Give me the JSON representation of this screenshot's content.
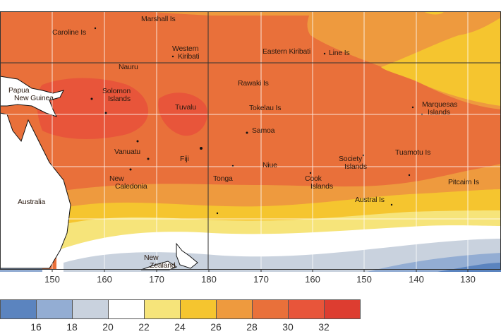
{
  "map": {
    "places": [
      "Marshall Is",
      "Caroline Is",
      "Western\nKiribati",
      "Eastern Kiribati",
      "Line Is",
      "Nauru",
      "Papua\nNew Guinea",
      "Solomon\nIslands",
      "Tuvalu",
      "Rawaki Is",
      "Tokelau Is",
      "Marquesas\nIslands",
      "Samoa",
      "Vanuatu",
      "Fiji",
      "Niue",
      "Society\nIslands",
      "Tuamotu Is",
      "New\nCaledonia",
      "Tonga",
      "Cook\nIslands",
      "Pitcairn Is",
      "Australia",
      "Austral Is",
      "New\nZealand"
    ],
    "longitude_ticks": [
      "150",
      "160",
      "170",
      "180",
      "170",
      "160",
      "150",
      "140",
      "130"
    ]
  },
  "legend": {
    "labels": [
      "16",
      "18",
      "20",
      "22",
      "24",
      "26",
      "28",
      "30",
      "32"
    ],
    "colors": [
      "#5b84bf",
      "#93add3",
      "#c9d2de",
      "#ffffff",
      "#f6e47a",
      "#f5c52f",
      "#ee9a3e",
      "#e9703a",
      "#e8553a",
      "#dd3d30"
    ]
  }
}
